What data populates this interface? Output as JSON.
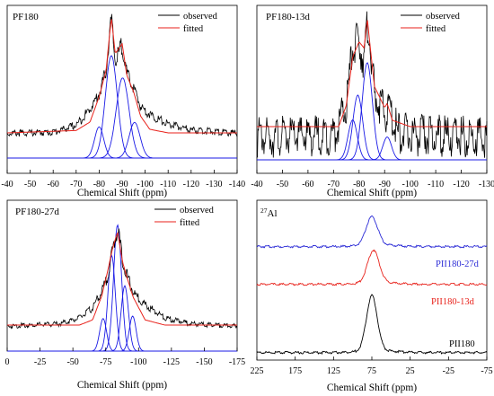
{
  "colors": {
    "observed": "#000000",
    "fitted": "#e8221b",
    "components": "#1a1ae6",
    "baseline": "#1a1ae6",
    "pii27d": "#2b2bd6",
    "pii13d": "#e8221b",
    "pii180": "#000000"
  },
  "chart_data": [
    {
      "type": "line",
      "title": "PF180",
      "xlabel": "Chemical Shift (ppm)",
      "xlim": [
        -40,
        -140
      ],
      "xticks": [
        "-40",
        "-50",
        "-60",
        "-70",
        "-80",
        "-90",
        "-100",
        "-110",
        "-120",
        "-130",
        "-140"
      ],
      "legend": {
        "placement": "top-right",
        "entries": [
          "observed",
          "fitted"
        ]
      },
      "components": [
        {
          "center": -80.0,
          "height": 0.28,
          "width": 2.0
        },
        {
          "center": -85.3,
          "height": 0.92,
          "width": 2.6
        },
        {
          "center": -90.2,
          "height": 0.72,
          "width": 2.8
        },
        {
          "center": -95.4,
          "height": 0.32,
          "width": 2.4
        }
      ],
      "series": [
        {
          "name": "observed",
          "x": [
            -40,
            -60,
            -70,
            -76,
            -80,
            -83,
            -85.3,
            -87,
            -90,
            -92,
            -95,
            -98,
            -103,
            -110,
            -120,
            -140
          ],
          "y": [
            0.01,
            0.02,
            0.08,
            0.22,
            0.35,
            0.55,
            1.0,
            0.62,
            0.78,
            0.52,
            0.4,
            0.24,
            0.16,
            0.09,
            0.04,
            0.01
          ]
        },
        {
          "name": "fitted",
          "x": [
            -40,
            -70,
            -76,
            -80,
            -83,
            -85.3,
            -87,
            -90,
            -92,
            -95,
            -98,
            -102,
            -110,
            -140
          ],
          "y": [
            0.0,
            0.02,
            0.09,
            0.3,
            0.52,
            0.96,
            0.66,
            0.74,
            0.48,
            0.34,
            0.14,
            0.03,
            0.0,
            0.0
          ]
        }
      ]
    },
    {
      "type": "line",
      "title": "PF180-13d",
      "xlabel": "Chemical Shift (ppm)",
      "xlim": [
        -40,
        -130
      ],
      "xticks": [
        "-40",
        "-50",
        "-60",
        "-70",
        "-80",
        "-90",
        "-100",
        "-110",
        "-120",
        "-130"
      ],
      "legend": {
        "placement": "top-right",
        "entries": [
          "observed",
          "fitted"
        ]
      },
      "components": [
        {
          "center": -77.5,
          "height": 0.42,
          "width": 1.8
        },
        {
          "center": -79.5,
          "height": 0.68,
          "width": 1.9
        },
        {
          "center": -83.2,
          "height": 1.02,
          "width": 2.0
        },
        {
          "center": -91.0,
          "height": 0.24,
          "width": 1.7
        }
      ],
      "series": [
        {
          "name": "observed",
          "x": [
            -40,
            -70,
            -75,
            -77.5,
            -80,
            -82,
            -83.5,
            -86,
            -90,
            -92,
            -95,
            -100,
            -130
          ],
          "y": [
            0.0,
            0.02,
            0.28,
            0.85,
            0.9,
            0.72,
            1.1,
            0.4,
            0.22,
            0.26,
            0.05,
            0.02,
            0.0
          ]
        },
        {
          "name": "fitted",
          "x": [
            -40,
            -72,
            -75,
            -77.5,
            -80,
            -82,
            -83.2,
            -86,
            -90,
            -91,
            -93,
            -100,
            -130
          ],
          "y": [
            0.0,
            0.0,
            0.2,
            0.66,
            0.8,
            0.74,
            1.02,
            0.38,
            0.18,
            0.22,
            0.06,
            0.0,
            0.0
          ]
        }
      ]
    },
    {
      "type": "line",
      "title": "PF180-27d",
      "xlabel": "Chemical Shift (ppm)",
      "xlim": [
        0,
        -175
      ],
      "xticks": [
        "0",
        "-25",
        "-50",
        "-75",
        "-100",
        "-125",
        "-150",
        "-175"
      ],
      "legend": {
        "placement": "top-right",
        "entries": [
          "observed",
          "fitted"
        ]
      },
      "components": [
        {
          "center": -73.0,
          "height": 0.28,
          "width": 2.6
        },
        {
          "center": -79.5,
          "height": 0.82,
          "width": 2.8
        },
        {
          "center": -84.0,
          "height": 1.08,
          "width": 3.0
        },
        {
          "center": -89.5,
          "height": 0.56,
          "width": 2.8
        },
        {
          "center": -95.5,
          "height": 0.3,
          "width": 2.6
        }
      ],
      "series": [
        {
          "name": "observed",
          "x": [
            0,
            -40,
            -55,
            -65,
            -72,
            -77,
            -80,
            -84,
            -88,
            -91,
            -96,
            -105,
            -120,
            -140,
            -175
          ],
          "y": [
            0.0,
            0.03,
            0.1,
            0.22,
            0.42,
            0.62,
            0.9,
            1.18,
            0.78,
            0.62,
            0.4,
            0.26,
            0.1,
            0.03,
            0.0
          ]
        },
        {
          "name": "fitted",
          "x": [
            0,
            -55,
            -65,
            -72,
            -77,
            -80,
            -84,
            -88,
            -91,
            -96,
            -105,
            -120,
            -175
          ],
          "y": [
            0.0,
            0.0,
            0.06,
            0.34,
            0.66,
            0.88,
            1.08,
            0.72,
            0.56,
            0.32,
            0.06,
            0.0,
            0.0
          ]
        }
      ]
    },
    {
      "type": "line",
      "title": "27Al",
      "xlabel": "Chemical Shift (ppm)",
      "xlim": [
        225,
        -75
      ],
      "xticks": [
        "225",
        "175",
        "125",
        "75",
        "25",
        "-25",
        "-75"
      ],
      "series": [
        {
          "name": "PII180-27d",
          "center": 75,
          "height": 0.3,
          "width": 7.5
        },
        {
          "name": "PII180-13d",
          "center": 73,
          "height": 0.36,
          "width": 7.5
        },
        {
          "name": "PII180",
          "center": 75,
          "height": 0.56,
          "width": 7.0
        }
      ]
    }
  ]
}
